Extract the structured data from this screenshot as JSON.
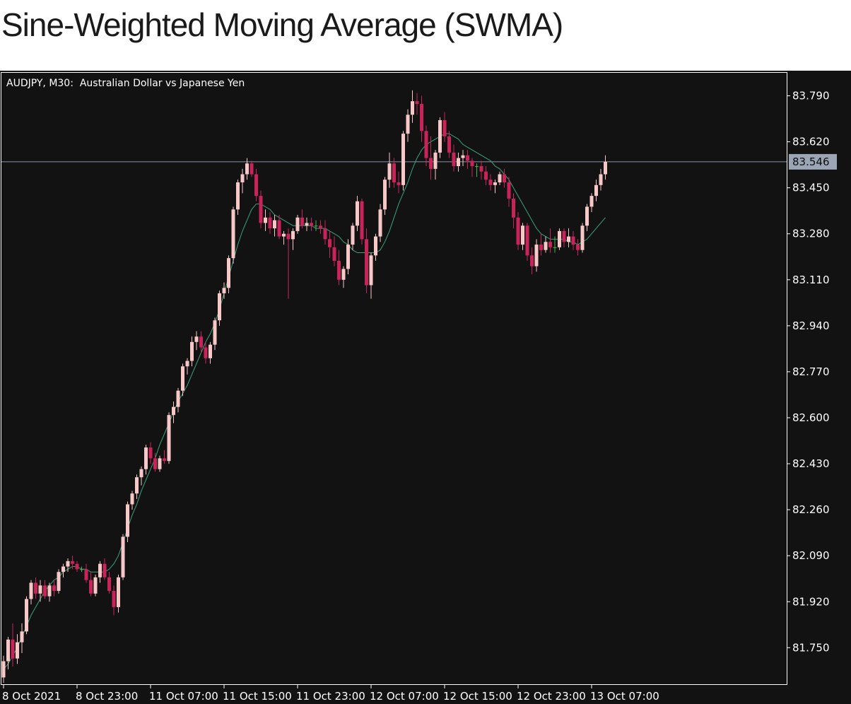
{
  "page_title": "Sine-Weighted Moving Average (SWMA)",
  "chart_data": {
    "type": "candlestick",
    "title": "",
    "symbol_label": "AUDJPY, M30:  Australian Dollar vs Japanese Yen",
    "ylim": [
      81.615,
      83.875
    ],
    "y_ticks": [
      "83.790",
      "83.620",
      "83.450",
      "83.280",
      "83.110",
      "82.940",
      "82.770",
      "82.600",
      "82.430",
      "82.260",
      "82.090",
      "81.920",
      "81.750"
    ],
    "x_ticks": [
      {
        "index": 0,
        "label": "8 Oct 2021"
      },
      {
        "index": 16,
        "label": "8 Oct 23:00"
      },
      {
        "index": 32,
        "label": "11 Oct 07:00"
      },
      {
        "index": 48,
        "label": "11 Oct 15:00"
      },
      {
        "index": 64,
        "label": "11 Oct 23:00"
      },
      {
        "index": 80,
        "label": "12 Oct 07:00"
      },
      {
        "index": 96,
        "label": "12 Oct 15:00"
      },
      {
        "index": 112,
        "label": "12 Oct 23:00"
      },
      {
        "index": 128,
        "label": "13 Oct 07:00"
      }
    ],
    "current_price": "83.546",
    "colors": {
      "background": "#121212",
      "up": "#f8c8c8",
      "down": "#c8245a",
      "doji": "#4caf50",
      "ma_line": "#3aa37a",
      "price_line": "#8a96a8",
      "price_box": "#9aa6b6",
      "axis": "#ffffff"
    },
    "series": [
      {
        "name": "AUDJPY",
        "ohlc": [
          [
            81.64,
            81.72,
            81.62,
            81.7
          ],
          [
            81.7,
            81.79,
            81.67,
            81.78
          ],
          [
            81.78,
            81.84,
            81.68,
            81.71
          ],
          [
            81.71,
            81.8,
            81.69,
            81.77
          ],
          [
            81.77,
            81.84,
            81.73,
            81.81
          ],
          [
            81.81,
            81.94,
            81.8,
            81.93
          ],
          [
            81.93,
            82.0,
            81.91,
            81.99
          ],
          [
            81.99,
            82.01,
            81.93,
            81.95
          ],
          [
            81.95,
            82.0,
            81.92,
            81.98
          ],
          [
            81.98,
            82.0,
            81.93,
            81.94
          ],
          [
            81.94,
            81.99,
            81.92,
            81.98
          ],
          [
            81.98,
            82.0,
            81.94,
            81.96
          ],
          [
            81.96,
            82.04,
            81.95,
            82.03
          ],
          [
            82.03,
            82.06,
            82.01,
            82.05
          ],
          [
            82.05,
            82.08,
            82.03,
            82.07
          ],
          [
            82.07,
            82.09,
            82.04,
            82.06
          ],
          [
            82.06,
            82.07,
            82.03,
            82.04
          ],
          [
            82.04,
            82.05,
            82.03,
            82.04
          ],
          [
            82.04,
            82.06,
            81.99,
            82.0
          ],
          [
            82.0,
            82.03,
            81.94,
            81.95
          ],
          [
            81.95,
            82.02,
            81.94,
            82.01
          ],
          [
            82.01,
            82.07,
            81.99,
            82.06
          ],
          [
            82.06,
            82.08,
            82.0,
            82.01
          ],
          [
            82.01,
            82.03,
            81.95,
            81.96
          ],
          [
            81.96,
            81.98,
            81.87,
            81.9
          ],
          [
            81.9,
            82.02,
            81.88,
            82.01
          ],
          [
            82.01,
            82.17,
            82.0,
            82.16
          ],
          [
            82.16,
            82.29,
            82.14,
            82.28
          ],
          [
            82.28,
            82.33,
            82.26,
            82.32
          ],
          [
            82.32,
            82.39,
            82.3,
            82.38
          ],
          [
            82.38,
            82.42,
            82.35,
            82.41
          ],
          [
            82.41,
            82.5,
            82.39,
            82.49
          ],
          [
            82.49,
            82.51,
            82.43,
            82.45
          ],
          [
            82.45,
            82.47,
            82.4,
            82.41
          ],
          [
            82.41,
            82.46,
            82.4,
            82.45
          ],
          [
            82.45,
            82.48,
            82.43,
            82.44
          ],
          [
            82.44,
            82.62,
            82.43,
            82.61
          ],
          [
            82.61,
            82.66,
            82.58,
            82.64
          ],
          [
            82.64,
            82.71,
            82.62,
            82.7
          ],
          [
            82.7,
            82.8,
            82.68,
            82.79
          ],
          [
            82.79,
            82.82,
            82.76,
            82.81
          ],
          [
            82.81,
            82.9,
            82.79,
            82.88
          ],
          [
            82.88,
            82.92,
            82.85,
            82.9
          ],
          [
            82.9,
            82.92,
            82.84,
            82.86
          ],
          [
            82.86,
            82.88,
            82.8,
            82.82
          ],
          [
            82.82,
            82.88,
            82.8,
            82.87
          ],
          [
            82.87,
            82.97,
            82.85,
            82.96
          ],
          [
            82.96,
            83.07,
            82.94,
            83.06
          ],
          [
            83.06,
            83.1,
            83.04,
            83.08
          ],
          [
            83.08,
            83.2,
            83.06,
            83.19
          ],
          [
            83.19,
            83.38,
            83.17,
            83.37
          ],
          [
            83.37,
            83.48,
            83.35,
            83.47
          ],
          [
            83.47,
            83.52,
            83.43,
            83.5
          ],
          [
            83.5,
            83.56,
            83.48,
            83.54
          ],
          [
            83.54,
            83.55,
            83.49,
            83.5
          ],
          [
            83.5,
            83.52,
            83.4,
            83.42
          ],
          [
            83.42,
            83.44,
            83.3,
            83.32
          ],
          [
            83.32,
            83.37,
            83.29,
            83.34
          ],
          [
            83.34,
            83.36,
            83.28,
            83.3
          ],
          [
            83.3,
            83.35,
            83.27,
            83.33
          ],
          [
            83.33,
            83.35,
            83.26,
            83.27
          ],
          [
            83.27,
            83.29,
            83.24,
            83.28
          ],
          [
            83.28,
            83.3,
            83.04,
            83.26
          ],
          [
            83.26,
            83.3,
            83.22,
            83.29
          ],
          [
            83.29,
            83.35,
            83.28,
            83.34
          ],
          [
            83.34,
            83.37,
            83.3,
            83.31
          ],
          [
            83.31,
            83.34,
            83.29,
            83.32
          ],
          [
            83.32,
            83.34,
            83.29,
            83.31
          ],
          [
            83.31,
            83.33,
            83.29,
            83.31
          ],
          [
            83.31,
            83.33,
            83.28,
            83.3
          ],
          [
            83.3,
            83.33,
            83.24,
            83.26
          ],
          [
            83.26,
            83.29,
            83.19,
            83.23
          ],
          [
            83.23,
            83.27,
            83.16,
            83.18
          ],
          [
            83.18,
            83.22,
            83.09,
            83.11
          ],
          [
            83.11,
            83.16,
            83.08,
            83.15
          ],
          [
            83.15,
            83.26,
            83.13,
            83.24
          ],
          [
            83.24,
            83.32,
            83.22,
            83.31
          ],
          [
            83.31,
            83.42,
            83.29,
            83.4
          ],
          [
            83.4,
            83.41,
            83.24,
            83.26
          ],
          [
            83.26,
            83.3,
            83.06,
            83.09
          ],
          [
            83.09,
            83.21,
            83.04,
            83.2
          ],
          [
            83.2,
            83.28,
            83.18,
            83.27
          ],
          [
            83.27,
            83.39,
            83.25,
            83.37
          ],
          [
            83.37,
            83.49,
            83.35,
            83.48
          ],
          [
            83.48,
            83.58,
            83.45,
            83.54
          ],
          [
            83.54,
            83.56,
            83.45,
            83.47
          ],
          [
            83.47,
            83.51,
            83.43,
            83.46
          ],
          [
            83.46,
            83.66,
            83.44,
            83.65
          ],
          [
            83.65,
            83.74,
            83.62,
            83.72
          ],
          [
            83.72,
            83.81,
            83.69,
            83.77
          ],
          [
            83.77,
            83.8,
            83.72,
            83.76
          ],
          [
            83.76,
            83.79,
            83.62,
            83.66
          ],
          [
            83.66,
            83.68,
            83.53,
            83.56
          ],
          [
            83.56,
            83.64,
            83.48,
            83.52
          ],
          [
            83.52,
            83.59,
            83.48,
            83.58
          ],
          [
            83.58,
            83.71,
            83.56,
            83.7
          ],
          [
            83.7,
            83.73,
            83.62,
            83.64
          ],
          [
            83.64,
            83.66,
            83.56,
            83.58
          ],
          [
            83.58,
            83.61,
            83.51,
            83.53
          ],
          [
            83.53,
            83.58,
            83.51,
            83.56
          ],
          [
            83.56,
            83.59,
            83.53,
            83.57
          ],
          [
            83.57,
            83.59,
            83.52,
            83.55
          ],
          [
            83.55,
            83.56,
            83.49,
            83.53
          ],
          [
            83.53,
            83.54,
            83.49,
            83.53
          ],
          [
            83.53,
            83.55,
            83.48,
            83.51
          ],
          [
            83.51,
            83.53,
            83.46,
            83.48
          ],
          [
            83.48,
            83.5,
            83.44,
            83.46
          ],
          [
            83.46,
            83.48,
            83.43,
            83.47
          ],
          [
            83.47,
            83.51,
            83.46,
            83.5
          ],
          [
            83.5,
            83.52,
            83.45,
            83.47
          ],
          [
            83.47,
            83.49,
            83.38,
            83.41
          ],
          [
            83.41,
            83.43,
            83.3,
            83.34
          ],
          [
            83.34,
            83.36,
            83.22,
            83.24
          ],
          [
            83.24,
            83.32,
            83.22,
            83.31
          ],
          [
            83.31,
            83.32,
            83.18,
            83.2
          ],
          [
            83.2,
            83.23,
            83.13,
            83.16
          ],
          [
            83.16,
            83.26,
            83.14,
            83.24
          ],
          [
            83.24,
            83.28,
            83.2,
            83.22
          ],
          [
            83.22,
            83.27,
            83.21,
            83.25
          ],
          [
            83.25,
            83.3,
            83.21,
            83.23
          ],
          [
            83.23,
            83.27,
            83.21,
            83.23
          ],
          [
            83.23,
            83.3,
            83.22,
            83.29
          ],
          [
            83.29,
            83.3,
            83.23,
            83.25
          ],
          [
            83.25,
            83.3,
            83.23,
            83.27
          ],
          [
            83.27,
            83.29,
            83.22,
            83.24
          ],
          [
            83.24,
            83.26,
            83.2,
            83.22
          ],
          [
            83.22,
            83.32,
            83.21,
            83.31
          ],
          [
            83.31,
            83.39,
            83.29,
            83.38
          ],
          [
            83.38,
            83.43,
            83.36,
            83.42
          ],
          [
            83.42,
            83.48,
            83.4,
            83.46
          ],
          [
            83.46,
            83.52,
            83.44,
            83.5
          ],
          [
            83.5,
            83.57,
            83.48,
            83.546
          ]
        ]
      },
      {
        "name": "SWMA",
        "values": [
          81.67,
          81.69,
          81.72,
          81.75,
          81.79,
          81.83,
          81.87,
          81.9,
          81.93,
          81.96,
          81.98,
          82.0,
          82.01,
          82.03,
          82.04,
          82.05,
          82.05,
          82.04,
          82.04,
          82.03,
          82.03,
          82.03,
          82.03,
          82.04,
          82.06,
          82.09,
          82.14,
          82.19,
          82.24,
          82.28,
          82.33,
          82.37,
          82.41,
          82.45,
          82.5,
          82.54,
          82.58,
          82.62,
          82.66,
          82.69,
          82.72,
          82.76,
          82.8,
          82.84,
          82.88,
          82.91,
          82.95,
          83.0,
          83.06,
          83.12,
          83.18,
          83.24,
          83.29,
          83.33,
          83.37,
          83.39,
          83.39,
          83.38,
          83.37,
          83.35,
          83.34,
          83.33,
          83.32,
          83.31,
          83.31,
          83.31,
          83.31,
          83.31,
          83.3,
          83.3,
          83.3,
          83.29,
          83.28,
          83.27,
          83.25,
          83.24,
          83.22,
          83.21,
          83.21,
          83.21,
          83.21,
          83.21,
          83.22,
          83.25,
          83.29,
          83.34,
          83.39,
          83.43,
          83.47,
          83.52,
          83.56,
          83.59,
          83.61,
          83.62,
          83.63,
          83.64,
          83.65,
          83.65,
          83.64,
          83.63,
          83.61,
          83.6,
          83.59,
          83.58,
          83.57,
          83.56,
          83.55,
          83.53,
          83.52,
          83.5,
          83.48,
          83.45,
          83.42,
          83.39,
          83.36,
          83.33,
          83.3,
          83.28,
          83.27,
          83.26,
          83.26,
          83.26,
          83.26,
          83.25,
          83.25,
          83.24,
          83.25,
          83.26,
          83.28,
          83.3,
          83.32,
          83.34
        ]
      }
    ]
  }
}
